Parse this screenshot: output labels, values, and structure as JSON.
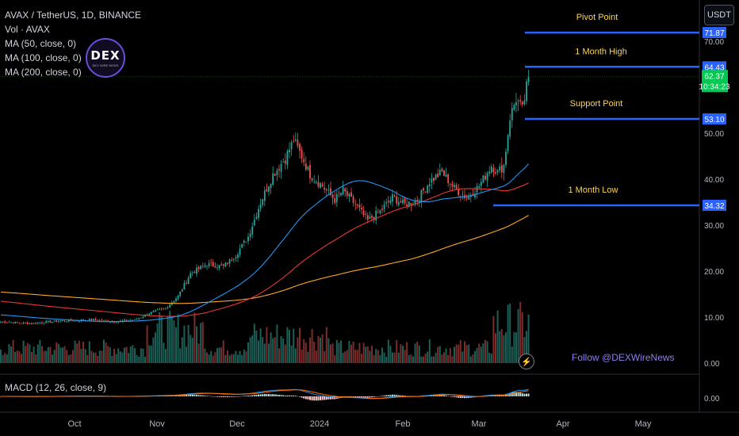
{
  "legend": {
    "symbol": "AVAX / TetherUS, 1D, BINANCE",
    "vol": "Vol · AVAX",
    "ma50": "MA (50, close, 0)",
    "ma100": "MA (100, close, 0)",
    "ma200": "MA (200, close, 0)",
    "macd": "MACD (12, 26, close, 9)"
  },
  "currency": "USDT",
  "logo": {
    "text": "DEX",
    "subtext": "DEX WIRE NEWS"
  },
  "follow_text": "Follow @DEXWireNews",
  "colors": {
    "up": "#26a69a",
    "down": "#ef5350",
    "ma50": "#2196f3",
    "ma100": "#e53935",
    "ma200": "#ffa726",
    "level_line": "#2962ff",
    "level_text": "#ffd54f",
    "price": "#00c853",
    "macd_line": "#2196f3",
    "signal_line": "#ff6d00"
  },
  "chart_data": {
    "type": "candlestick",
    "ylim": [
      0,
      76
    ],
    "y_ticks": [
      "70.00",
      "50.00",
      "40.00",
      "30.00",
      "20.00",
      "10.00",
      "0.00"
    ],
    "y_tick_values": [
      70,
      50,
      40,
      30,
      20,
      10,
      0
    ],
    "x_ticks": [
      "Oct",
      "Nov",
      "Dec",
      "2024",
      "Feb",
      "Mar",
      "Apr",
      "May"
    ],
    "last_price": {
      "value": "62.37",
      "countdown": "10:34:23"
    },
    "levels": [
      {
        "name": "Pivot Point",
        "value": 71.87,
        "label": "71.87"
      },
      {
        "name": "1 Month High",
        "value": 64.43,
        "label": "64.43"
      },
      {
        "name": "Support Point",
        "value": 53.1,
        "label": "53.10"
      },
      {
        "name": "1 Month Low",
        "value": 34.32,
        "label": "34.32"
      }
    ],
    "macd_y_tick": "0.00",
    "price_anchors": [
      [
        0,
        9.0
      ],
      [
        15,
        8.6
      ],
      [
        30,
        9.2
      ],
      [
        45,
        9.4
      ],
      [
        55,
        9.0
      ],
      [
        65,
        9.4
      ],
      [
        72,
        10.8
      ],
      [
        80,
        12.0
      ],
      [
        86,
        14.5
      ],
      [
        92,
        19.5
      ],
      [
        100,
        21.5
      ],
      [
        108,
        21.0
      ],
      [
        114,
        23.5
      ],
      [
        120,
        27.5
      ],
      [
        126,
        35.0
      ],
      [
        132,
        41.0
      ],
      [
        138,
        44.5
      ],
      [
        142,
        48.5
      ],
      [
        146,
        45.0
      ],
      [
        150,
        41.0
      ],
      [
        156,
        38.5
      ],
      [
        162,
        35.5
      ],
      [
        166,
        37.5
      ],
      [
        172,
        34.5
      ],
      [
        178,
        31.0
      ],
      [
        184,
        33.0
      ],
      [
        190,
        36.0
      ],
      [
        196,
        34.5
      ],
      [
        202,
        35.5
      ],
      [
        208,
        39.5
      ],
      [
        214,
        41.5
      ],
      [
        220,
        38.0
      ],
      [
        226,
        36.0
      ],
      [
        232,
        38.5
      ],
      [
        238,
        43.0
      ],
      [
        241,
        41.5
      ],
      [
        244,
        43.0
      ],
      [
        247,
        53.5
      ],
      [
        250,
        57.5
      ],
      [
        253,
        55.0
      ],
      [
        256,
        62.37
      ]
    ]
  }
}
